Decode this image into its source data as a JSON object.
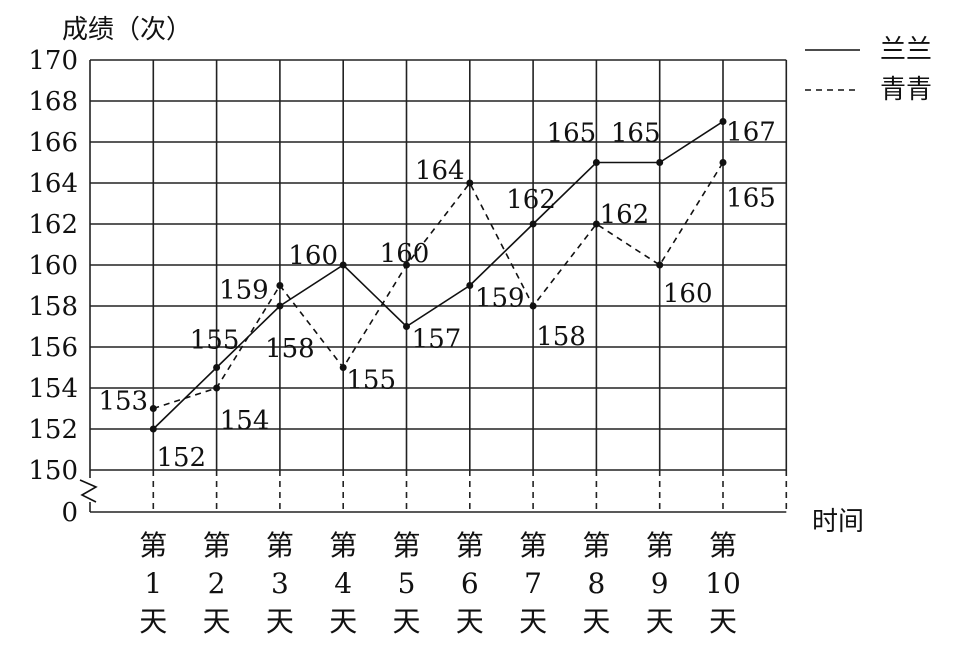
{
  "chart_data": {
    "type": "line",
    "ylabel": "成绩（次）",
    "xlabel": "时间",
    "categories": [
      "第\n1\n天",
      "第\n2\n天",
      "第\n3\n天",
      "第\n4\n天",
      "第\n5\n天",
      "第\n6\n天",
      "第\n7\n天",
      "第\n8\n天",
      "第\n9\n天",
      "第\n10\n天"
    ],
    "category_parts": [
      [
        "第",
        "1",
        "天"
      ],
      [
        "第",
        "2",
        "天"
      ],
      [
        "第",
        "3",
        "天"
      ],
      [
        "第",
        "4",
        "天"
      ],
      [
        "第",
        "5",
        "天"
      ],
      [
        "第",
        "6",
        "天"
      ],
      [
        "第",
        "7",
        "天"
      ],
      [
        "第",
        "8",
        "天"
      ],
      [
        "第",
        "9",
        "天"
      ],
      [
        "第",
        "10",
        "天"
      ]
    ],
    "yticks": [
      0,
      150,
      152,
      154,
      156,
      158,
      160,
      162,
      164,
      166,
      168,
      170
    ],
    "ylim": [
      150,
      170
    ],
    "axis_break": true,
    "grid": true,
    "legend_position": "top-right",
    "series": [
      {
        "name": "兰兰",
        "style": "solid",
        "values": [
          152,
          155,
          158,
          160,
          157,
          159,
          162,
          165,
          165,
          167
        ]
      },
      {
        "name": "青青",
        "style": "dashed",
        "values": [
          153,
          154,
          159,
          155,
          160,
          164,
          158,
          162,
          160,
          165
        ]
      }
    ]
  }
}
